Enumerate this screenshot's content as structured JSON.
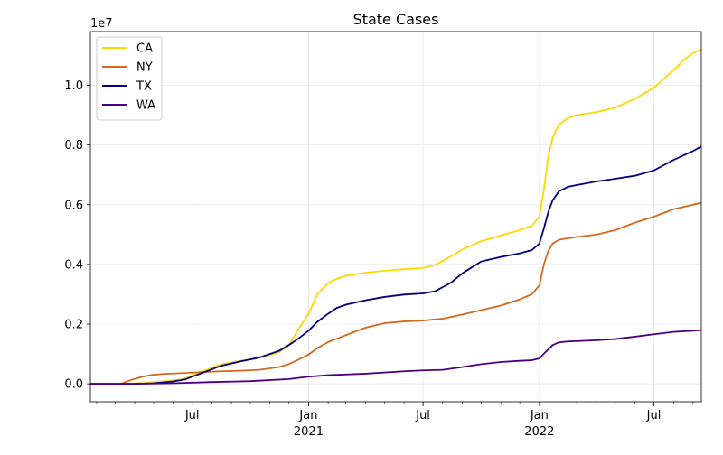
{
  "chart_data": {
    "type": "line",
    "title": "State Cases",
    "xlabel": "",
    "ylabel": "",
    "y_offset_label": "1e7",
    "y_scale": 10000000,
    "xlim": [
      "2020-01-22",
      "2022-09-14"
    ],
    "ylim": [
      -0.06,
      1.18
    ],
    "yticks": [
      0.0,
      0.2,
      0.4,
      0.6,
      0.8,
      1.0
    ],
    "ytick_labels": [
      "0.0",
      "0.2",
      "0.4",
      "0.6",
      "0.8",
      "1.0"
    ],
    "xticks": [
      {
        "date": "2020-07-01",
        "label": "Jul",
        "sub": ""
      },
      {
        "date": "2021-01-01",
        "label": "Jan",
        "sub": "2021"
      },
      {
        "date": "2021-07-01",
        "label": "Jul",
        "sub": ""
      },
      {
        "date": "2022-01-01",
        "label": "Jan",
        "sub": "2022"
      },
      {
        "date": "2022-07-01",
        "label": "Jul",
        "sub": ""
      }
    ],
    "grid": true,
    "legend_position": "upper-left",
    "series": [
      {
        "name": "CA",
        "color": "#FFD700",
        "points": [
          [
            "2020-01-22",
            0.0
          ],
          [
            "2020-03-15",
            0.0
          ],
          [
            "2020-04-15",
            0.003
          ],
          [
            "2020-05-15",
            0.008
          ],
          [
            "2020-06-15",
            0.015
          ],
          [
            "2020-07-15",
            0.04
          ],
          [
            "2020-08-15",
            0.065
          ],
          [
            "2020-09-15",
            0.077
          ],
          [
            "2020-10-15",
            0.087
          ],
          [
            "2020-11-15",
            0.105
          ],
          [
            "2020-12-01",
            0.13
          ],
          [
            "2020-12-15",
            0.18
          ],
          [
            "2021-01-01",
            0.235
          ],
          [
            "2021-01-15",
            0.3
          ],
          [
            "2021-02-01",
            0.338
          ],
          [
            "2021-02-15",
            0.352
          ],
          [
            "2021-03-01",
            0.362
          ],
          [
            "2021-04-01",
            0.372
          ],
          [
            "2021-05-01",
            0.379
          ],
          [
            "2021-06-01",
            0.384
          ],
          [
            "2021-07-01",
            0.388
          ],
          [
            "2021-07-20",
            0.398
          ],
          [
            "2021-08-15",
            0.428
          ],
          [
            "2021-09-01",
            0.45
          ],
          [
            "2021-10-01",
            0.478
          ],
          [
            "2021-11-01",
            0.497
          ],
          [
            "2021-12-01",
            0.515
          ],
          [
            "2021-12-20",
            0.53
          ],
          [
            "2022-01-01",
            0.56
          ],
          [
            "2022-01-08",
            0.65
          ],
          [
            "2022-01-15",
            0.76
          ],
          [
            "2022-01-22",
            0.825
          ],
          [
            "2022-02-01",
            0.868
          ],
          [
            "2022-02-15",
            0.89
          ],
          [
            "2022-03-01",
            0.9
          ],
          [
            "2022-04-01",
            0.91
          ],
          [
            "2022-05-01",
            0.925
          ],
          [
            "2022-06-01",
            0.955
          ],
          [
            "2022-07-01",
            0.992
          ],
          [
            "2022-08-01",
            1.05
          ],
          [
            "2022-08-20",
            1.09
          ],
          [
            "2022-09-01",
            1.108
          ],
          [
            "2022-09-14",
            1.12
          ]
        ]
      },
      {
        "name": "NY",
        "color": "#D2691E",
        "points": [
          [
            "2020-01-22",
            0.0
          ],
          [
            "2020-03-10",
            0.0
          ],
          [
            "2020-03-25",
            0.012
          ],
          [
            "2020-04-10",
            0.022
          ],
          [
            "2020-04-25",
            0.029
          ],
          [
            "2020-05-15",
            0.033
          ],
          [
            "2020-06-15",
            0.036
          ],
          [
            "2020-07-15",
            0.039
          ],
          [
            "2020-08-15",
            0.042
          ],
          [
            "2020-09-15",
            0.044
          ],
          [
            "2020-10-15",
            0.047
          ],
          [
            "2020-11-15",
            0.056
          ],
          [
            "2020-12-01",
            0.066
          ],
          [
            "2020-12-15",
            0.08
          ],
          [
            "2021-01-01",
            0.098
          ],
          [
            "2021-01-15",
            0.12
          ],
          [
            "2021-02-01",
            0.14
          ],
          [
            "2021-03-01",
            0.163
          ],
          [
            "2021-04-01",
            0.188
          ],
          [
            "2021-05-01",
            0.203
          ],
          [
            "2021-06-01",
            0.209
          ],
          [
            "2021-07-01",
            0.212
          ],
          [
            "2021-08-01",
            0.218
          ],
          [
            "2021-09-01",
            0.232
          ],
          [
            "2021-10-01",
            0.247
          ],
          [
            "2021-11-01",
            0.262
          ],
          [
            "2021-12-01",
            0.283
          ],
          [
            "2021-12-20",
            0.3
          ],
          [
            "2022-01-01",
            0.33
          ],
          [
            "2022-01-08",
            0.4
          ],
          [
            "2022-01-15",
            0.445
          ],
          [
            "2022-01-22",
            0.47
          ],
          [
            "2022-02-01",
            0.483
          ],
          [
            "2022-03-01",
            0.492
          ],
          [
            "2022-04-01",
            0.5
          ],
          [
            "2022-05-01",
            0.515
          ],
          [
            "2022-06-01",
            0.54
          ],
          [
            "2022-07-01",
            0.56
          ],
          [
            "2022-08-01",
            0.585
          ],
          [
            "2022-09-01",
            0.6
          ],
          [
            "2022-09-14",
            0.607
          ]
        ]
      },
      {
        "name": "TX",
        "color": "#000080",
        "points": [
          [
            "2020-01-22",
            0.0
          ],
          [
            "2020-04-01",
            0.0
          ],
          [
            "2020-05-01",
            0.002
          ],
          [
            "2020-06-01",
            0.008
          ],
          [
            "2020-06-20",
            0.015
          ],
          [
            "2020-07-15",
            0.035
          ],
          [
            "2020-08-15",
            0.06
          ],
          [
            "2020-09-15",
            0.075
          ],
          [
            "2020-10-15",
            0.088
          ],
          [
            "2020-11-15",
            0.11
          ],
          [
            "2020-12-01",
            0.13
          ],
          [
            "2020-12-15",
            0.15
          ],
          [
            "2021-01-01",
            0.178
          ],
          [
            "2021-01-15",
            0.208
          ],
          [
            "2021-02-01",
            0.235
          ],
          [
            "2021-02-15",
            0.255
          ],
          [
            "2021-03-01",
            0.265
          ],
          [
            "2021-04-01",
            0.28
          ],
          [
            "2021-05-01",
            0.291
          ],
          [
            "2021-06-01",
            0.299
          ],
          [
            "2021-07-01",
            0.303
          ],
          [
            "2021-07-20",
            0.31
          ],
          [
            "2021-08-15",
            0.34
          ],
          [
            "2021-09-01",
            0.37
          ],
          [
            "2021-10-01",
            0.41
          ],
          [
            "2021-11-01",
            0.425
          ],
          [
            "2021-12-01",
            0.437
          ],
          [
            "2021-12-20",
            0.448
          ],
          [
            "2022-01-01",
            0.47
          ],
          [
            "2022-01-08",
            0.52
          ],
          [
            "2022-01-15",
            0.575
          ],
          [
            "2022-01-22",
            0.615
          ],
          [
            "2022-02-01",
            0.645
          ],
          [
            "2022-02-15",
            0.66
          ],
          [
            "2022-03-01",
            0.666
          ],
          [
            "2022-04-01",
            0.678
          ],
          [
            "2022-05-01",
            0.687
          ],
          [
            "2022-06-01",
            0.697
          ],
          [
            "2022-07-01",
            0.715
          ],
          [
            "2022-08-01",
            0.75
          ],
          [
            "2022-09-01",
            0.78
          ],
          [
            "2022-09-14",
            0.795
          ]
        ]
      },
      {
        "name": "WA",
        "color": "#4B0082",
        "points": [
          [
            "2020-01-22",
            0.0
          ],
          [
            "2020-04-01",
            0.0
          ],
          [
            "2020-06-01",
            0.002
          ],
          [
            "2020-08-01",
            0.006
          ],
          [
            "2020-10-01",
            0.009
          ],
          [
            "2020-12-01",
            0.016
          ],
          [
            "2021-01-01",
            0.024
          ],
          [
            "2021-02-01",
            0.029
          ],
          [
            "2021-04-01",
            0.034
          ],
          [
            "2021-06-01",
            0.042
          ],
          [
            "2021-07-01",
            0.045
          ],
          [
            "2021-08-01",
            0.047
          ],
          [
            "2021-09-01",
            0.056
          ],
          [
            "2021-10-01",
            0.066
          ],
          [
            "2021-11-01",
            0.073
          ],
          [
            "2021-12-01",
            0.077
          ],
          [
            "2021-12-20",
            0.079
          ],
          [
            "2022-01-01",
            0.085
          ],
          [
            "2022-01-10",
            0.105
          ],
          [
            "2022-01-22",
            0.13
          ],
          [
            "2022-02-01",
            0.139
          ],
          [
            "2022-02-15",
            0.142
          ],
          [
            "2022-03-01",
            0.143
          ],
          [
            "2022-04-01",
            0.146
          ],
          [
            "2022-05-01",
            0.15
          ],
          [
            "2022-06-01",
            0.158
          ],
          [
            "2022-07-01",
            0.166
          ],
          [
            "2022-08-01",
            0.174
          ],
          [
            "2022-09-01",
            0.178
          ],
          [
            "2022-09-14",
            0.18
          ]
        ]
      }
    ]
  }
}
